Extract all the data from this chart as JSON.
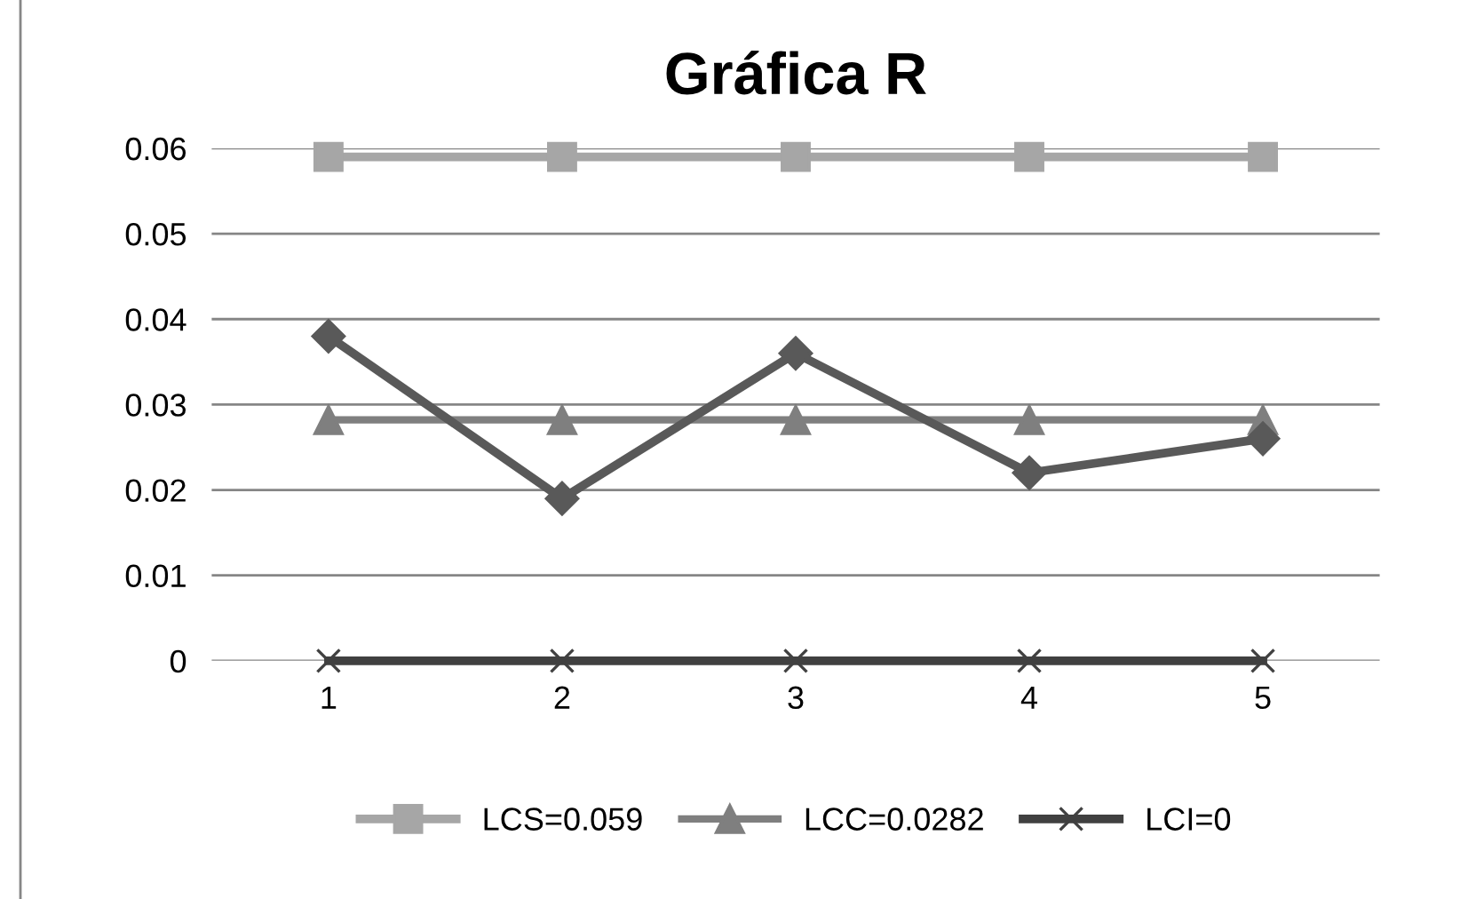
{
  "chart_data": {
    "type": "line",
    "title": "Gráfica R",
    "categories": [
      "1",
      "2",
      "3",
      "4",
      "5"
    ],
    "series": [
      {
        "name": "LCS=0.059",
        "color": "#a6a6a6",
        "marker": "square",
        "values": [
          0.059,
          0.059,
          0.059,
          0.059,
          0.059
        ]
      },
      {
        "name": "LCC=0.0282",
        "color": "#7f7f7f",
        "marker": "triangle",
        "values": [
          0.0282,
          0.0282,
          0.0282,
          0.0282,
          0.0282
        ]
      },
      {
        "name": "LCI=0",
        "color": "#404040",
        "marker": "cross",
        "values": [
          0,
          0,
          0,
          0,
          0
        ]
      },
      {
        "color": "#595959",
        "marker": "diamond",
        "values": [
          0.038,
          0.019,
          0.036,
          0.022,
          0.026
        ]
      }
    ],
    "ylim": [
      0,
      0.06
    ],
    "yticks": [
      0,
      0.01,
      0.02,
      0.03,
      0.04,
      0.05,
      0.06
    ],
    "grid": "y",
    "legend": "bottom"
  }
}
